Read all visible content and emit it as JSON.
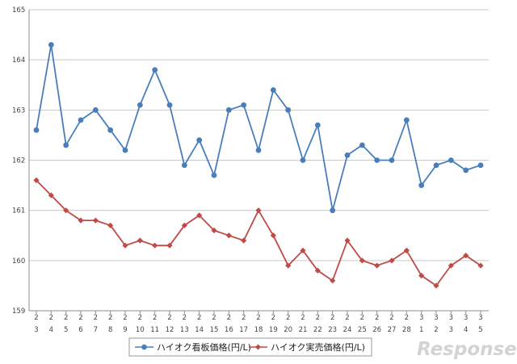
{
  "chart_data": {
    "type": "line",
    "ylim": [
      159,
      165
    ],
    "yticks": [
      "159",
      "160",
      "161",
      "162",
      "163",
      "164",
      "165"
    ],
    "grid": true,
    "legend_position": "bottom",
    "categories": [
      [
        "2",
        "3"
      ],
      [
        "2",
        "4"
      ],
      [
        "2",
        "5"
      ],
      [
        "2",
        "6"
      ],
      [
        "2",
        "7"
      ],
      [
        "2",
        "8"
      ],
      [
        "2",
        "9"
      ],
      [
        "2",
        "10"
      ],
      [
        "2",
        "11"
      ],
      [
        "2",
        "12"
      ],
      [
        "2",
        "13"
      ],
      [
        "2",
        "14"
      ],
      [
        "2",
        "15"
      ],
      [
        "2",
        "16"
      ],
      [
        "2",
        "17"
      ],
      [
        "2",
        "18"
      ],
      [
        "2",
        "19"
      ],
      [
        "2",
        "20"
      ],
      [
        "2",
        "21"
      ],
      [
        "2",
        "22"
      ],
      [
        "2",
        "23"
      ],
      [
        "2",
        "24"
      ],
      [
        "2",
        "25"
      ],
      [
        "2",
        "26"
      ],
      [
        "2",
        "27"
      ],
      [
        "2",
        "28"
      ],
      [
        "3",
        "1"
      ],
      [
        "3",
        "2"
      ],
      [
        "3",
        "3"
      ],
      [
        "3",
        "4"
      ],
      [
        "3",
        "5"
      ]
    ],
    "series": [
      {
        "name": "ハイオク看板価格(円/L)",
        "color": "#4a7ebb",
        "marker": "circle",
        "values": [
          162.6,
          164.3,
          162.3,
          162.8,
          163.0,
          162.6,
          162.2,
          163.1,
          163.8,
          163.1,
          161.9,
          162.4,
          161.7,
          163.0,
          163.1,
          162.2,
          163.4,
          163.0,
          162.0,
          162.7,
          161.0,
          162.1,
          162.3,
          162.0,
          162.0,
          162.8,
          161.5,
          161.9,
          162.0,
          161.8,
          161.9
        ]
      },
      {
        "name": "ハイオク実売価格(円/L)",
        "color": "#be4b48",
        "marker": "diamond",
        "values": [
          161.6,
          161.3,
          161.0,
          160.8,
          160.8,
          160.7,
          160.3,
          160.4,
          160.3,
          160.3,
          160.7,
          160.9,
          160.6,
          160.5,
          160.4,
          161.0,
          160.5,
          159.9,
          160.2,
          159.8,
          159.6,
          160.4,
          160.0,
          159.9,
          160.0,
          160.2,
          159.7,
          159.5,
          159.9,
          160.1,
          159.9
        ]
      }
    ]
  },
  "watermark": "Response."
}
